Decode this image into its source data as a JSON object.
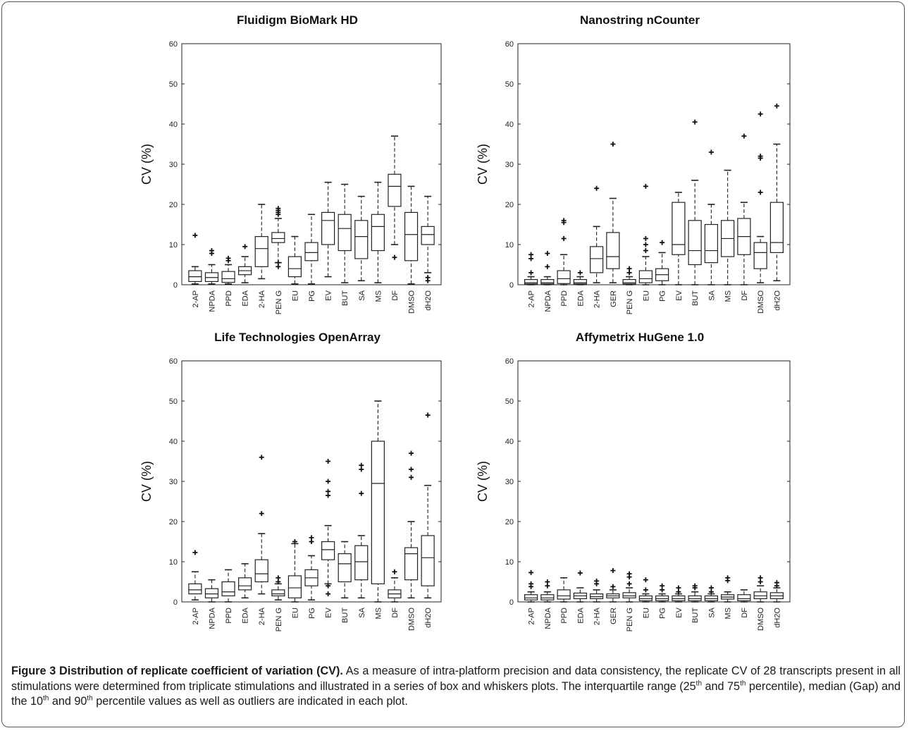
{
  "figure": {
    "caption": {
      "bold": "Figure 3 Distribution of replicate coefficient of variation (CV).",
      "p1": " As a measure of intra-platform precision and data consistency, the replicate CV of 28 transcripts present in all stimulations were determined from triplicate stimulations and illustrated in a series of box and whiskers plots. The interquartile range (25",
      "sup1": "th",
      "p2": " and 75",
      "sup2": "th",
      "p3": " percentile), median (Gap) and the 10",
      "sup3": "th",
      "p4": " and 90",
      "sup4": "th",
      "p5": " percentile values as well as outliers are indicated in each plot."
    }
  },
  "chart_data": [
    {
      "type": "box",
      "title": "Fluidigm BioMark HD",
      "ylabel": "CV (%)",
      "ylim": [
        0,
        60
      ],
      "yticks": [
        0,
        10,
        20,
        30,
        40,
        50,
        60
      ],
      "categories": [
        "2-AP",
        "NPDA",
        "PPD",
        "EDA",
        "2-HA",
        "PEN G",
        "EU",
        "PG",
        "EV",
        "BUT",
        "SA",
        "MS",
        "DF",
        "DMSO",
        "dH2O"
      ],
      "boxes": [
        {
          "w0": 0.2,
          "q1": 0.8,
          "med": 2,
          "q3": 3.5,
          "w1": 4.5,
          "out": [
            12.3
          ]
        },
        {
          "w0": 0.2,
          "q1": 0.8,
          "med": 1.8,
          "q3": 3,
          "w1": 5,
          "out": [
            7.8,
            8.5
          ]
        },
        {
          "w0": 0.2,
          "q1": 0.6,
          "med": 1.5,
          "q3": 3.3,
          "w1": 5,
          "out": [
            6,
            6.6
          ]
        },
        {
          "w0": 0.5,
          "q1": 2.5,
          "med": 3.5,
          "q3": 4.5,
          "w1": 7,
          "out": [
            9.5
          ]
        },
        {
          "w0": 1.5,
          "q1": 4.5,
          "med": 9,
          "q3": 12,
          "w1": 20,
          "out": []
        },
        {
          "w0": 5.5,
          "q1": 10.5,
          "med": 11.5,
          "q3": 13,
          "w1": 16.5,
          "out": [
            4.5,
            5.5,
            17.5,
            18,
            18.5,
            19
          ]
        },
        {
          "w0": 0.2,
          "q1": 2,
          "med": 4,
          "q3": 7,
          "w1": 12,
          "out": []
        },
        {
          "w0": 0.2,
          "q1": 6,
          "med": 8,
          "q3": 10.5,
          "w1": 17.5,
          "out": []
        },
        {
          "w0": 2,
          "q1": 10,
          "med": 16,
          "q3": 18,
          "w1": 25.5,
          "out": []
        },
        {
          "w0": 0.5,
          "q1": 8.5,
          "med": 14,
          "q3": 17.5,
          "w1": 25,
          "out": []
        },
        {
          "w0": 1,
          "q1": 6.5,
          "med": 12,
          "q3": 16,
          "w1": 22,
          "out": []
        },
        {
          "w0": 0.5,
          "q1": 8.5,
          "med": 14.5,
          "q3": 17.5,
          "w1": 25.5,
          "out": []
        },
        {
          "w0": 10,
          "q1": 19.5,
          "med": 24.5,
          "q3": 27.5,
          "w1": 37,
          "out": [
            6.8
          ]
        },
        {
          "w0": 0.2,
          "q1": 6,
          "med": 12.5,
          "q3": 18,
          "w1": 24.5,
          "out": []
        },
        {
          "w0": 3,
          "q1": 10,
          "med": 12.5,
          "q3": 14.5,
          "w1": 22,
          "out": [
            1,
            1.8
          ]
        }
      ]
    },
    {
      "type": "box",
      "title": "Nanostring nCounter",
      "ylabel": "CV (%)",
      "ylim": [
        0,
        60
      ],
      "yticks": [
        0,
        10,
        20,
        30,
        40,
        50,
        60
      ],
      "categories": [
        "2-AP",
        "NPDA",
        "PPD",
        "EDA",
        "2-HA",
        "GER",
        "PEN G",
        "EU",
        "PG",
        "EV",
        "BUT",
        "SA",
        "MS",
        "DF",
        "DMSO",
        "dH2O"
      ],
      "boxes": [
        {
          "w0": 0,
          "q1": 0.2,
          "med": 0.5,
          "q3": 1.3,
          "w1": 2,
          "out": [
            3,
            6.5,
            7.5
          ]
        },
        {
          "w0": 0,
          "q1": 0.2,
          "med": 0.5,
          "q3": 1.3,
          "w1": 2,
          "out": [
            4.5,
            7.8
          ]
        },
        {
          "w0": 0,
          "q1": 0.3,
          "med": 1.5,
          "q3": 3.5,
          "w1": 7.5,
          "out": [
            11.5,
            15.5,
            16
          ]
        },
        {
          "w0": 0,
          "q1": 0.2,
          "med": 0.5,
          "q3": 1.3,
          "w1": 2,
          "out": [
            3
          ]
        },
        {
          "w0": 0.5,
          "q1": 3,
          "med": 6.5,
          "q3": 9.5,
          "w1": 14.5,
          "out": [
            24
          ]
        },
        {
          "w0": 0.5,
          "q1": 4,
          "med": 7,
          "q3": 13,
          "w1": 21.5,
          "out": [
            35
          ]
        },
        {
          "w0": 0,
          "q1": 0.2,
          "med": 0.5,
          "q3": 1.3,
          "w1": 2,
          "out": [
            3,
            4
          ]
        },
        {
          "w0": 0,
          "q1": 0.5,
          "med": 1.5,
          "q3": 3.5,
          "w1": 7,
          "out": [
            8.5,
            10,
            11.5,
            24.5
          ]
        },
        {
          "w0": 0,
          "q1": 1,
          "med": 2.5,
          "q3": 4,
          "w1": 8,
          "out": [
            10.5
          ]
        },
        {
          "w0": 0,
          "q1": 7.5,
          "med": 10,
          "q3": 20.5,
          "w1": 23,
          "out": []
        },
        {
          "w0": 0,
          "q1": 5,
          "med": 8.5,
          "q3": 16,
          "w1": 26,
          "out": [
            40.5
          ]
        },
        {
          "w0": 0,
          "q1": 5.5,
          "med": 8.5,
          "q3": 15,
          "w1": 20,
          "out": [
            33
          ]
        },
        {
          "w0": 0,
          "q1": 7,
          "med": 11.5,
          "q3": 16,
          "w1": 28.5,
          "out": []
        },
        {
          "w0": 0,
          "q1": 7.5,
          "med": 12,
          "q3": 16.5,
          "w1": 20.5,
          "out": [
            37
          ]
        },
        {
          "w0": 0.5,
          "q1": 4,
          "med": 8,
          "q3": 10.5,
          "w1": 12,
          "out": [
            23,
            31.5,
            32,
            42.5
          ]
        },
        {
          "w0": 1,
          "q1": 8,
          "med": 10.5,
          "q3": 20.5,
          "w1": 35,
          "out": [
            44.5
          ]
        }
      ]
    },
    {
      "type": "box",
      "title": "Life Technologies OpenArray",
      "ylabel": "CV (%)",
      "ylim": [
        0,
        60
      ],
      "yticks": [
        0,
        10,
        20,
        30,
        40,
        50,
        60
      ],
      "categories": [
        "2-AP",
        "NPDA",
        "PPD",
        "EDA",
        "2-HA",
        "PEN G",
        "EU",
        "PG",
        "EV",
        "BUT",
        "SA",
        "MS",
        "DF",
        "DMSO",
        "dH2O"
      ],
      "boxes": [
        {
          "w0": 0.5,
          "q1": 2,
          "med": 3,
          "q3": 4.5,
          "w1": 7.5,
          "out": [
            12.3
          ]
        },
        {
          "w0": 0,
          "q1": 1,
          "med": 2,
          "q3": 3.3,
          "w1": 5.5,
          "out": []
        },
        {
          "w0": 0,
          "q1": 1.5,
          "med": 2.5,
          "q3": 5,
          "w1": 8,
          "out": []
        },
        {
          "w0": 1,
          "q1": 3,
          "med": 4,
          "q3": 6,
          "w1": 9.5,
          "out": []
        },
        {
          "w0": 2,
          "q1": 5,
          "med": 7,
          "q3": 10.5,
          "w1": 17,
          "out": [
            22,
            36
          ]
        },
        {
          "w0": 0.5,
          "q1": 1.5,
          "med": 2,
          "q3": 3,
          "w1": 4.5,
          "out": [
            5,
            6
          ]
        },
        {
          "w0": 0,
          "q1": 1,
          "med": 3.5,
          "q3": 6.5,
          "w1": 14.5,
          "out": [
            15
          ]
        },
        {
          "w0": 0.5,
          "q1": 4,
          "med": 6,
          "q3": 8,
          "w1": 11.5,
          "out": [
            15,
            16
          ]
        },
        {
          "w0": 4.5,
          "q1": 10.5,
          "med": 13,
          "q3": 15,
          "w1": 19,
          "out": [
            2,
            4,
            26.5,
            27.5,
            30,
            35
          ]
        },
        {
          "w0": 1,
          "q1": 5,
          "med": 9.5,
          "q3": 12,
          "w1": 15,
          "out": []
        },
        {
          "w0": 1,
          "q1": 5.5,
          "med": 10,
          "q3": 14,
          "w1": 16.5,
          "out": [
            27,
            33,
            34
          ]
        },
        {
          "w0": 0,
          "q1": 4.5,
          "med": 29.5,
          "q3": 40,
          "w1": 50,
          "out": []
        },
        {
          "w0": 0,
          "q1": 1,
          "med": 2,
          "q3": 3,
          "w1": 6,
          "out": [
            7.5
          ]
        },
        {
          "w0": 1,
          "q1": 5.5,
          "med": 12,
          "q3": 13.5,
          "w1": 20,
          "out": [
            31,
            33,
            37
          ]
        },
        {
          "w0": 1,
          "q1": 4,
          "med": 11,
          "q3": 16.5,
          "w1": 29,
          "out": [
            46.5
          ]
        }
      ]
    },
    {
      "type": "box",
      "title": "Affymetrix HuGene 1.0",
      "ylabel": "CV (%)",
      "ylim": [
        0,
        60
      ],
      "yticks": [
        0,
        10,
        20,
        30,
        40,
        50,
        60
      ],
      "categories": [
        "2-AP",
        "NPDA",
        "PPD",
        "EDA",
        "2-HA",
        "GER",
        "PEN G",
        "EU",
        "PG",
        "EV",
        "BUT",
        "SA",
        "MS",
        "DF",
        "DMSO",
        "dH2O"
      ],
      "boxes": [
        {
          "w0": 0,
          "q1": 0.5,
          "med": 1,
          "q3": 1.8,
          "w1": 2.5,
          "out": [
            3.8,
            4.5,
            7.3
          ]
        },
        {
          "w0": 0,
          "q1": 0.5,
          "med": 1,
          "q3": 1.8,
          "w1": 2.5,
          "out": [
            4,
            5
          ]
        },
        {
          "w0": 0,
          "q1": 0.7,
          "med": 1.5,
          "q3": 3,
          "w1": 6,
          "out": []
        },
        {
          "w0": 0,
          "q1": 0.8,
          "med": 1.5,
          "q3": 2.2,
          "w1": 3.5,
          "out": [
            7.2
          ]
        },
        {
          "w0": 0,
          "q1": 0.8,
          "med": 1.3,
          "q3": 2,
          "w1": 3,
          "out": [
            4.5,
            5.2
          ]
        },
        {
          "w0": 0,
          "q1": 1,
          "med": 1.5,
          "q3": 2,
          "w1": 3,
          "out": [
            3.8,
            7.8
          ]
        },
        {
          "w0": 0,
          "q1": 1,
          "med": 1.5,
          "q3": 2.3,
          "w1": 3.5,
          "out": [
            4.5,
            6.2,
            7
          ]
        },
        {
          "w0": 0,
          "q1": 0.3,
          "med": 0.8,
          "q3": 1.5,
          "w1": 2,
          "out": [
            3,
            5.5
          ]
        },
        {
          "w0": 0,
          "q1": 0.3,
          "med": 0.8,
          "q3": 1.5,
          "w1": 2,
          "out": [
            3,
            4
          ]
        },
        {
          "w0": 0,
          "q1": 0.3,
          "med": 0.8,
          "q3": 1.5,
          "w1": 2,
          "out": [
            2.5,
            3.5
          ]
        },
        {
          "w0": 0,
          "q1": 0.3,
          "med": 0.8,
          "q3": 1.5,
          "w1": 2.5,
          "out": [
            3.5,
            4
          ]
        },
        {
          "w0": 0,
          "q1": 0.3,
          "med": 0.8,
          "q3": 1.5,
          "w1": 2,
          "out": [
            2.5,
            3.5
          ]
        },
        {
          "w0": 0,
          "q1": 0.7,
          "med": 1.2,
          "q3": 1.8,
          "w1": 2.5,
          "out": [
            5.3,
            6
          ]
        },
        {
          "w0": 0,
          "q1": 0.3,
          "med": 0.8,
          "q3": 1.8,
          "w1": 3,
          "out": []
        },
        {
          "w0": 0,
          "q1": 0.8,
          "med": 1.5,
          "q3": 2.5,
          "w1": 4,
          "out": [
            5,
            6
          ]
        },
        {
          "w0": 0,
          "q1": 0.8,
          "med": 1.5,
          "q3": 2.3,
          "w1": 3.5,
          "out": [
            4,
            4.8
          ]
        }
      ]
    }
  ]
}
